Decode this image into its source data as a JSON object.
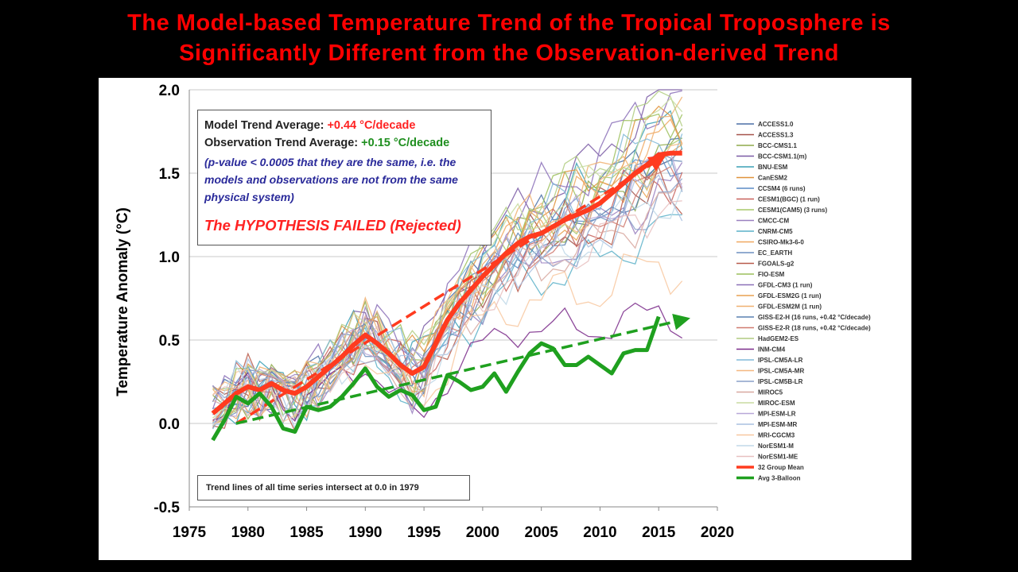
{
  "title": {
    "line1": "The Model-based Temperature Trend of the Tropical Troposphere is",
    "line2": "Significantly Different from the Observation-derived Trend"
  },
  "info_box": {
    "model_label": "Model Trend Average: ",
    "model_value": "+0.44 °C/decade",
    "obs_label": "Observation Trend Average: ",
    "obs_value": "+0.15 °C/decade",
    "pvalue_note": "(p-value < 0.0005 that they are the same, i.e. the models and observations are not from the same physical system)",
    "verdict": "The HYPOTHESIS FAILED (Rejected)"
  },
  "note": "Trend lines of all time series intersect at 0.0 in 1979",
  "chart_data": {
    "type": "line",
    "title": "",
    "xlabel": "",
    "ylabel": "Temperature Anomaly (°C)",
    "xlim": [
      1975,
      2020
    ],
    "ylim": [
      -0.5,
      2.0
    ],
    "x_ticks": [
      1975,
      1980,
      1985,
      1990,
      1995,
      2000,
      2005,
      2010,
      2015,
      2020
    ],
    "y_ticks": [
      "-0.5",
      "0.0",
      "0.5",
      "1.0",
      "1.5",
      "2.0"
    ],
    "grid": "horizontal",
    "legend_position": "right",
    "model_series": [
      {
        "name": "ACCESS1.0",
        "color": "#4a6fa5",
        "amp": 0.13,
        "phase": 0.3,
        "end": 1.7
      },
      {
        "name": "ACCESS1.3",
        "color": "#a5524a",
        "amp": 0.12,
        "phase": 1.1,
        "end": 1.55
      },
      {
        "name": "BCC-CMS1.1",
        "color": "#8faa4a",
        "amp": 0.14,
        "phase": 2.0,
        "end": 1.6
      },
      {
        "name": "BCC-CSM1.1(m)",
        "color": "#7a5aa5",
        "amp": 0.11,
        "phase": 2.7,
        "end": 2.0
      },
      {
        "name": "BNU-ESM",
        "color": "#3aa0b5",
        "amp": 0.15,
        "phase": 3.4,
        "end": 1.75
      },
      {
        "name": "CanESM2",
        "color": "#e0923a",
        "amp": 0.12,
        "phase": 4.1,
        "end": 1.85
      },
      {
        "name": "CCSM4 (6 runs)",
        "color": "#5b8bc6",
        "amp": 0.1,
        "phase": 4.9,
        "end": 1.6
      },
      {
        "name": "CESM1(BGC) (1 run)",
        "color": "#c8605a",
        "amp": 0.13,
        "phase": 5.6,
        "end": 1.5
      },
      {
        "name": "CESM1(CAM5) (3 runs)",
        "color": "#a8c86a",
        "amp": 0.12,
        "phase": 0.8,
        "end": 1.65
      },
      {
        "name": "CMCC-CM",
        "color": "#9a80c0",
        "amp": 0.14,
        "phase": 1.6,
        "end": 1.4
      },
      {
        "name": "CNRM-CM5",
        "color": "#5ab0c8",
        "amp": 0.11,
        "phase": 2.4,
        "end": 1.15
      },
      {
        "name": "CSIRO-Mk3-6-0",
        "color": "#f0a860",
        "amp": 0.13,
        "phase": 3.1,
        "end": 1.7
      },
      {
        "name": "EC_EARTH",
        "color": "#6d8fc0",
        "amp": 0.12,
        "phase": 3.9,
        "end": 1.55
      },
      {
        "name": "FGOALS-g2",
        "color": "#b85a4a",
        "amp": 0.15,
        "phase": 4.6,
        "end": 1.45
      },
      {
        "name": "FIO-ESM",
        "color": "#9cbf5c",
        "amp": 0.12,
        "phase": 5.3,
        "end": 1.9
      },
      {
        "name": "GFDL-CM3 (1 run)",
        "color": "#8b70b8",
        "amp": 0.14,
        "phase": 0.1,
        "end": 2.0
      },
      {
        "name": "GFDL-ESM2G (1 run)",
        "color": "#e8a050",
        "amp": 0.12,
        "phase": 0.9,
        "end": 1.6
      },
      {
        "name": "GFDL-ESM2M (1 run)",
        "color": "#f0b070",
        "amp": 0.13,
        "phase": 1.7,
        "end": 1.8
      },
      {
        "name": "GISS-E2-H (16 runs, +0.42 °C/decade)",
        "color": "#5a80b0",
        "amp": 0.09,
        "phase": 2.5,
        "end": 1.5
      },
      {
        "name": "GISS-E2-R (18 runs, +0.42 °C/decade)",
        "color": "#d07a70",
        "amp": 0.09,
        "phase": 3.3,
        "end": 1.45
      },
      {
        "name": "HadGEM2-ES",
        "color": "#b0cc80",
        "amp": 0.12,
        "phase": 4.0,
        "end": 1.95
      },
      {
        "name": "INM-CM4",
        "color": "#7a2a8a",
        "amp": 0.08,
        "phase": 4.8,
        "end": 0.6
      },
      {
        "name": "IPSL-CM5A-LR",
        "color": "#80b8d8",
        "amp": 0.14,
        "phase": 5.5,
        "end": 1.75
      },
      {
        "name": "IPSL-CM5A-MR",
        "color": "#f5b880",
        "amp": 0.13,
        "phase": 0.5,
        "end": 1.65
      },
      {
        "name": "IPSL-CM5B-LR",
        "color": "#8aa0c8",
        "amp": 0.12,
        "phase": 1.3,
        "end": 1.35
      },
      {
        "name": "MIROC5",
        "color": "#d8a8a0",
        "amp": 0.12,
        "phase": 2.1,
        "end": 1.3
      },
      {
        "name": "MIROC-ESM",
        "color": "#c8dca0",
        "amp": 0.11,
        "phase": 2.9,
        "end": 1.85
      },
      {
        "name": "MPI-ESM-LR",
        "color": "#b8a8d8",
        "amp": 0.12,
        "phase": 3.7,
        "end": 1.55
      },
      {
        "name": "MPI-ESM-MR",
        "color": "#a8c0e0",
        "amp": 0.13,
        "phase": 4.4,
        "end": 1.4
      },
      {
        "name": "MRI-CGCM3",
        "color": "#f8c8a0",
        "amp": 0.12,
        "phase": 5.2,
        "end": 0.92
      },
      {
        "name": "NorESM1-M",
        "color": "#c0d8e8",
        "amp": 0.12,
        "phase": 6.0,
        "end": 1.35
      },
      {
        "name": "NorESM1-ME",
        "color": "#e8c0c0",
        "amp": 0.11,
        "phase": 0.6,
        "end": 1.3
      }
    ],
    "series": [
      {
        "name": "32 Group Mean",
        "color": "#ff3b1f",
        "x": [
          1977,
          1978,
          1979,
          1980,
          1981,
          1982,
          1983,
          1984,
          1985,
          1986,
          1987,
          1988,
          1989,
          1990,
          1991,
          1992,
          1993,
          1994,
          1995,
          1996,
          1997,
          1998,
          1999,
          2000,
          2001,
          2002,
          2003,
          2004,
          2005,
          2006,
          2007,
          2008,
          2009,
          2010,
          2011,
          2012,
          2013,
          2014,
          2015,
          2016,
          2017
        ],
        "values": [
          0.06,
          0.12,
          0.18,
          0.22,
          0.2,
          0.24,
          0.2,
          0.18,
          0.22,
          0.28,
          0.34,
          0.4,
          0.47,
          0.53,
          0.48,
          0.42,
          0.35,
          0.3,
          0.34,
          0.48,
          0.62,
          0.72,
          0.8,
          0.88,
          0.95,
          1.02,
          1.08,
          1.12,
          1.14,
          1.18,
          1.22,
          1.25,
          1.28,
          1.32,
          1.38,
          1.44,
          1.5,
          1.55,
          1.61,
          1.62,
          1.62
        ]
      },
      {
        "name": "Avg 3-Balloon",
        "color": "#1fa01f",
        "x": [
          1977,
          1978,
          1979,
          1980,
          1981,
          1982,
          1983,
          1984,
          1985,
          1986,
          1987,
          1988,
          1989,
          1990,
          1991,
          1992,
          1993,
          1994,
          1995,
          1996,
          1997,
          1998,
          1999,
          2000,
          2001,
          2002,
          2003,
          2004,
          2005,
          2006,
          2007,
          2008,
          2009,
          2010,
          2011,
          2012,
          2013,
          2014,
          2015
        ],
        "values": [
          -0.1,
          0.02,
          0.16,
          0.12,
          0.18,
          0.1,
          -0.03,
          -0.05,
          0.1,
          0.08,
          0.1,
          0.16,
          0.24,
          0.33,
          0.22,
          0.16,
          0.2,
          0.17,
          0.08,
          0.1,
          0.29,
          0.25,
          0.2,
          0.22,
          0.3,
          0.19,
          0.31,
          0.42,
          0.48,
          0.45,
          0.35,
          0.35,
          0.4,
          0.35,
          0.3,
          0.42,
          0.44,
          0.44,
          0.64
        ]
      }
    ],
    "trend_lines": [
      {
        "name": "model-trend",
        "color": "#ff3b1f",
        "x": [
          1979,
          2015
        ],
        "values": [
          0.0,
          1.58
        ]
      },
      {
        "name": "observation-trend",
        "color": "#1fa01f",
        "x": [
          1979,
          2017
        ],
        "values": [
          0.0,
          0.62
        ]
      }
    ]
  }
}
